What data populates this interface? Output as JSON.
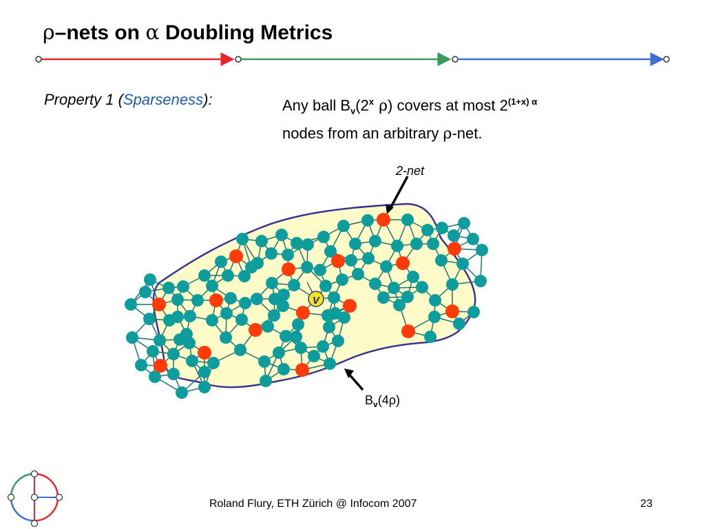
{
  "slide": {
    "title": {
      "rho": "ρ",
      "dash": "–",
      "part1": "nets on ",
      "alpha": "α",
      "part2": " Doubling Metrics"
    },
    "property": {
      "label_prefix": "Property 1 (",
      "label_term": "Sparseness",
      "label_suffix": "):",
      "line1_a": "Any ball B",
      "line1_sub": "v",
      "line1_b": "(2",
      "line1_sup_x": "x",
      "line1_rho": " ρ",
      "line1_c": ") covers at most 2",
      "line1_sup_exp": "(1+x) α",
      "line2_a": "nodes from an arbitrary ",
      "line2_rho": "ρ",
      "line2_b": "-net."
    },
    "figure": {
      "net_label": "2-net",
      "center_label": "v",
      "ball_label_a": "B",
      "ball_label_sub": "v",
      "ball_label_b": "(4ρ)"
    },
    "footer": {
      "text": "Roland Flury, ETH Zürich @ Infocom 2007",
      "page_number": "23"
    },
    "colors": {
      "teal_node": "#0f9c9c",
      "red_node": "#ff3b0a",
      "ball_fill": "#fffbc8",
      "ball_stroke": "#3a3490",
      "rule_red": "#e8262a",
      "rule_green": "#3a9a5a",
      "rule_blue": "#3c6fd0",
      "center_node": "#f2e51a"
    }
  }
}
